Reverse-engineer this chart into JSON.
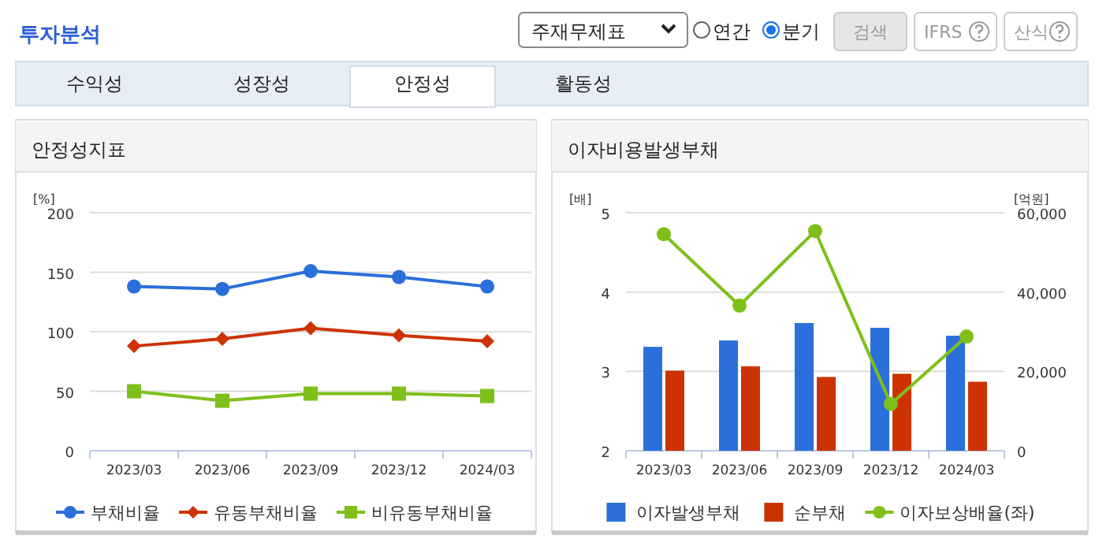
{
  "chart_data": [
    {
      "type": "other",
      "title": "투자분석",
      "annotations": [
        "주재무제표",
        "연간",
        "분기",
        "검색",
        "IFRS",
        "산식",
        "수익성",
        "성장성",
        "안정성",
        "활동성"
      ]
    },
    {
      "type": "line",
      "title": "안정성지표",
      "ylabel": "[%]",
      "categories": [
        "2023/03",
        "2023/06",
        "2023/09",
        "2023/12",
        "2024/03"
      ],
      "ylim": [
        0,
        200
      ],
      "yticks": [
        0,
        50,
        100,
        150,
        200
      ],
      "grid": "y",
      "legend": "bottom",
      "series": [
        {
          "name": "부채비율",
          "color": "#2b6fdb",
          "marker": "circle",
          "values": [
            138,
            136,
            151,
            146,
            138
          ]
        },
        {
          "name": "유동부채비율",
          "color": "#cc3300",
          "marker": "diamond",
          "values": [
            88,
            94,
            103,
            97,
            92
          ]
        },
        {
          "name": "비유동부채비율",
          "color": "#7fbf1a",
          "marker": "square",
          "values": [
            50,
            42,
            48,
            48,
            46
          ]
        }
      ]
    },
    {
      "type": "bar",
      "title": "이자비용발생부채",
      "ylabel": "[배]",
      "y2label": "[억원]",
      "categories": [
        "2023/03",
        "2023/06",
        "2023/09",
        "2023/12",
        "2024/03"
      ],
      "ylim": [
        2,
        5
      ],
      "yticks": [
        2,
        3,
        4,
        5
      ],
      "y2lim": [
        0,
        60000
      ],
      "y2ticks": [
        {
          "value": 0,
          "label": "0"
        },
        {
          "value": 20000,
          "label": "20,000"
        },
        {
          "value": 40000,
          "label": "40,000"
        },
        {
          "value": 60000,
          "label": "60,000"
        }
      ],
      "grid": "y",
      "legend": "bottom",
      "series": [
        {
          "name": "이자발생부채",
          "color": "#2b6fdb",
          "axis": "y2",
          "values": [
            26200,
            27800,
            32200,
            31000,
            29000
          ]
        },
        {
          "name": "순부채",
          "color": "#cc3300",
          "axis": "y2",
          "values": [
            20200,
            21300,
            18600,
            19400,
            17400
          ]
        },
        {
          "name": "이자보상배율(좌)",
          "type": "line",
          "marker": "circle",
          "color": "#7fbf1a",
          "values": [
            4.73,
            3.83,
            4.77,
            2.59,
            3.44
          ]
        }
      ]
    }
  ]
}
